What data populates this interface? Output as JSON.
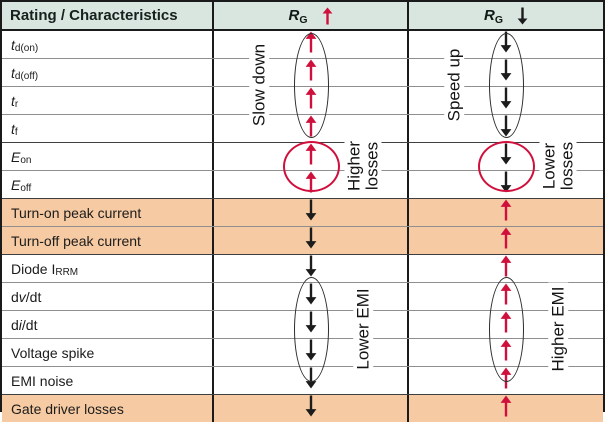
{
  "colors": {
    "header_bg": "#d9e5df",
    "orange_bg": "#f6caa2",
    "white_bg": "#ffffff",
    "grid_gray": "#8f8f8f",
    "grid_dark": "#3f3f3f",
    "border_black": "#1a1a1a",
    "red": "#d0103c",
    "black": "#1c1c1c"
  },
  "header": {
    "rating_label": "Rating / Characteristics",
    "col2": {
      "symbol": "R",
      "subscript": "G",
      "arrow": "up",
      "arrow_color": "red"
    },
    "col3": {
      "symbol": "R",
      "subscript": "G",
      "arrow": "down",
      "arrow_color": "black"
    }
  },
  "rows": [
    {
      "name": "td-on",
      "parts": [
        {
          "t": "t",
          "s": "i"
        },
        {
          "t": "d(on)",
          "s": "sub"
        }
      ],
      "bg": "white",
      "sep": "gray",
      "mid": {
        "dir": "up",
        "color": "red"
      },
      "right": {
        "dir": "down",
        "color": "black"
      }
    },
    {
      "name": "td-off",
      "parts": [
        {
          "t": "t",
          "s": "i"
        },
        {
          "t": "d(off)",
          "s": "sub"
        }
      ],
      "bg": "white",
      "sep": "gray",
      "mid": {
        "dir": "up",
        "color": "red"
      },
      "right": {
        "dir": "down",
        "color": "black"
      }
    },
    {
      "name": "tr",
      "parts": [
        {
          "t": "t",
          "s": "i"
        },
        {
          "t": "r",
          "s": "sub"
        }
      ],
      "bg": "white",
      "sep": "gray",
      "mid": {
        "dir": "up",
        "color": "red"
      },
      "right": {
        "dir": "down",
        "color": "black"
      }
    },
    {
      "name": "tf",
      "parts": [
        {
          "t": "t",
          "s": "i"
        },
        {
          "t": "f",
          "s": "sub"
        }
      ],
      "bg": "white",
      "sep": "dark",
      "mid": {
        "dir": "up",
        "color": "red"
      },
      "right": {
        "dir": "down",
        "color": "black"
      }
    },
    {
      "name": "e-on",
      "parts": [
        {
          "t": "E",
          "s": "i"
        },
        {
          "t": "on",
          "s": "sub"
        }
      ],
      "bg": "white",
      "sep": "gray",
      "mid": {
        "dir": "up",
        "color": "red"
      },
      "right": {
        "dir": "down",
        "color": "black"
      }
    },
    {
      "name": "e-off",
      "parts": [
        {
          "t": "E",
          "s": "i"
        },
        {
          "t": "off",
          "s": "sub"
        }
      ],
      "bg": "white",
      "sep": "dark",
      "mid": {
        "dir": "up",
        "color": "red"
      },
      "right": {
        "dir": "down",
        "color": "black"
      }
    },
    {
      "name": "turn-on-peak-current",
      "parts": [
        {
          "t": "Turn-on peak current"
        }
      ],
      "bg": "orange",
      "sep": "gray",
      "mid": {
        "dir": "down",
        "color": "black"
      },
      "right": {
        "dir": "up",
        "color": "red"
      }
    },
    {
      "name": "turn-off-peak-current",
      "parts": [
        {
          "t": "Turn-off peak current"
        }
      ],
      "bg": "orange",
      "sep": "dark",
      "mid": {
        "dir": "down",
        "color": "black"
      },
      "right": {
        "dir": "up",
        "color": "red"
      }
    },
    {
      "name": "diode-irrm",
      "parts": [
        {
          "t": "Diode I"
        },
        {
          "t": "RRM",
          "s": "sub"
        }
      ],
      "bg": "white",
      "sep": "gray",
      "mid": {
        "dir": "down",
        "color": "black"
      },
      "right": {
        "dir": "up",
        "color": "red"
      }
    },
    {
      "name": "dv-dt",
      "parts": [
        {
          "t": "d"
        },
        {
          "t": "v",
          "s": "i"
        },
        {
          "t": "/dt"
        }
      ],
      "bg": "white",
      "sep": "gray",
      "mid": {
        "dir": "down",
        "color": "black"
      },
      "right": {
        "dir": "up",
        "color": "red"
      }
    },
    {
      "name": "di-dt",
      "parts": [
        {
          "t": "d"
        },
        {
          "t": "i",
          "s": "i"
        },
        {
          "t": "/dt"
        }
      ],
      "bg": "white",
      "sep": "gray",
      "mid": {
        "dir": "down",
        "color": "black"
      },
      "right": {
        "dir": "up",
        "color": "red"
      }
    },
    {
      "name": "voltage-spike",
      "parts": [
        {
          "t": "Voltage spike"
        }
      ],
      "bg": "white",
      "sep": "gray",
      "mid": {
        "dir": "down",
        "color": "black"
      },
      "right": {
        "dir": "up",
        "color": "red"
      }
    },
    {
      "name": "emi-noise",
      "parts": [
        {
          "t": "EMI noise"
        }
      ],
      "bg": "white",
      "sep": "dark",
      "mid": {
        "dir": "down",
        "color": "black"
      },
      "right": {
        "dir": "up",
        "color": "red"
      }
    },
    {
      "name": "gate-driver-losses",
      "parts": [
        {
          "t": "Gate driver losses"
        }
      ],
      "bg": "orange",
      "sep": "none",
      "mid": {
        "dir": "down",
        "color": "black"
      },
      "right": {
        "dir": "up",
        "color": "red"
      }
    }
  ],
  "annotations": {
    "shapes": [
      {
        "name": "slow-down-ellipse",
        "col": "mid",
        "kind": "ellipse",
        "row_start": 0,
        "row_end": 3,
        "stroke": "dark"
      },
      {
        "name": "higher-losses-circle",
        "col": "mid",
        "kind": "circle",
        "row_start": 4,
        "row_end": 5,
        "stroke": "red"
      },
      {
        "name": "lower-emi-ellipse",
        "col": "mid",
        "kind": "ellipse",
        "row_start": 9,
        "row_end": 12,
        "stroke": "dark"
      },
      {
        "name": "speed-up-ellipse",
        "col": "right",
        "kind": "ellipse",
        "row_start": 0,
        "row_end": 3,
        "stroke": "dark"
      },
      {
        "name": "lower-losses-circle",
        "col": "right",
        "kind": "circle",
        "row_start": 4,
        "row_end": 5,
        "stroke": "red"
      },
      {
        "name": "higher-emi-ellipse",
        "col": "right",
        "kind": "ellipse",
        "row_start": 9,
        "row_end": 12,
        "stroke": "dark"
      }
    ],
    "labels": [
      {
        "name": "slow-down-label",
        "col": "mid",
        "side": "left",
        "row_start": 0,
        "row_end": 3,
        "lines": [
          "Slow down"
        ]
      },
      {
        "name": "higher-losses-label",
        "col": "mid",
        "side": "right",
        "row_start": 4,
        "row_end": 5,
        "lines": [
          "Higher",
          "losses"
        ]
      },
      {
        "name": "lower-emi-label",
        "col": "mid",
        "side": "right",
        "row_start": 9,
        "row_end": 12,
        "lines": [
          "Lower EMI"
        ]
      },
      {
        "name": "speed-up-label",
        "col": "right",
        "side": "left",
        "row_start": 0,
        "row_end": 3,
        "lines": [
          "Speed up"
        ]
      },
      {
        "name": "lower-losses-label",
        "col": "right",
        "side": "right",
        "row_start": 4,
        "row_end": 5,
        "lines": [
          "Lower",
          "losses"
        ]
      },
      {
        "name": "higher-emi-label",
        "col": "right",
        "side": "right",
        "row_start": 9,
        "row_end": 12,
        "lines": [
          "Higher EMI"
        ]
      }
    ]
  }
}
